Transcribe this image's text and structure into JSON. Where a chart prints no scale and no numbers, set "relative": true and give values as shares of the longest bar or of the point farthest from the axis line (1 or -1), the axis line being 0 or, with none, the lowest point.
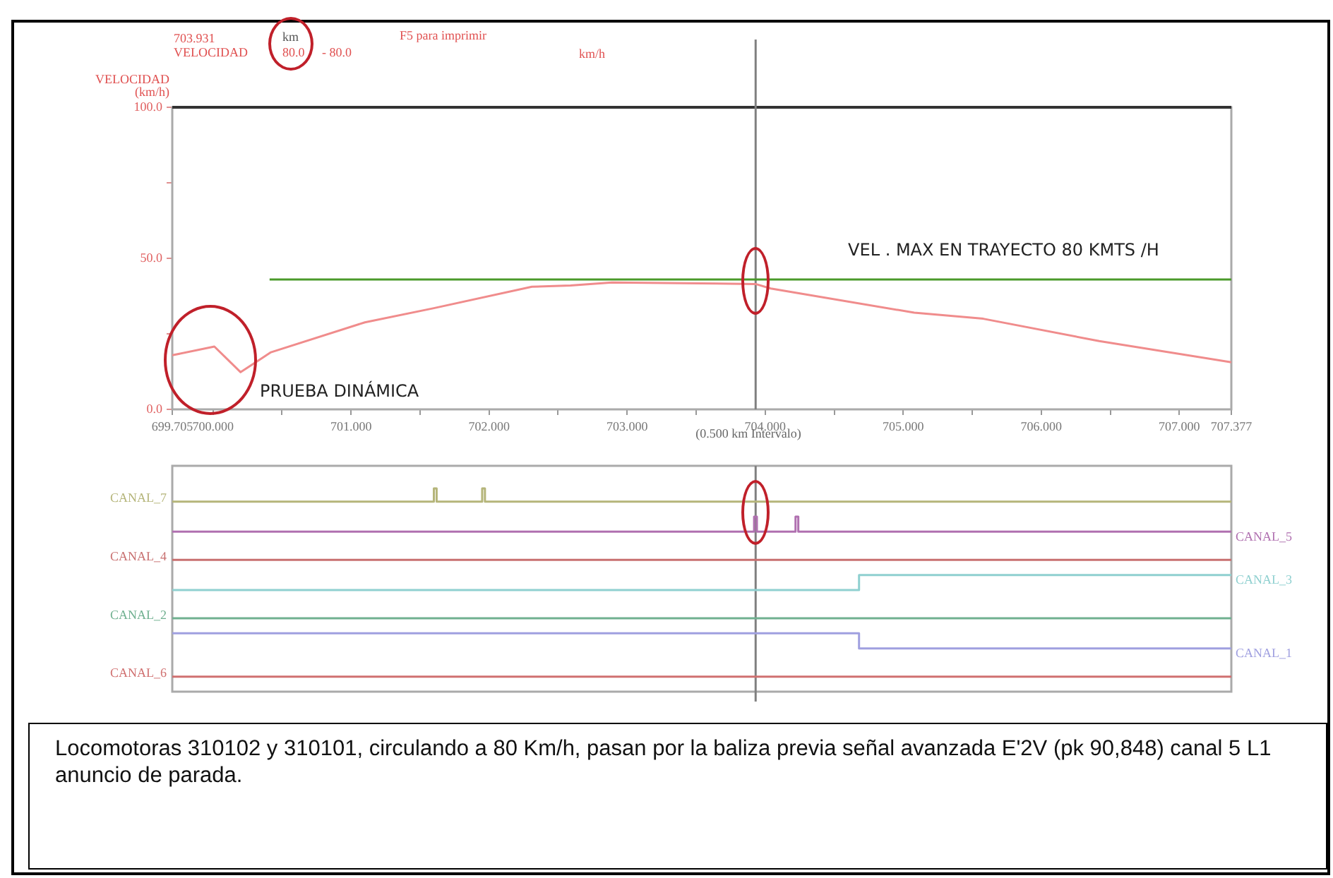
{
  "chart_data": [
    {
      "type": "line",
      "ylabel": "VELOCIDAD (km/h)",
      "xlabel": "(0.500 km Intervalo)",
      "annotations": [
        "703.931",
        "VELOCIDAD",
        "km",
        "80.0",
        "- 80.0",
        "F5 para imprimir",
        "km/h",
        {
          "text": "VEL . MAX EN TRAYECTO 80 KMTS /H",
          "x": 704.6,
          "y": 43
        },
        "PRUEBA DINÁMICA"
      ],
      "series": [
        {
          "color": "#f08c8c",
          "x": [
            699.705,
            700.01,
            700.2,
            700.42,
            701.1,
            701.6,
            702.31,
            702.59,
            702.89,
            703.931,
            704.04,
            705.08,
            705.58,
            706.42,
            707.377
          ],
          "values": [
            17.9,
            20.8,
            12.3,
            18.9,
            28.8,
            33.5,
            40.6,
            41,
            42,
            41.5,
            40,
            32,
            30,
            22.6,
            15.6
          ]
        },
        {
          "color": "#4a9a2a",
          "x": [
            700.41,
            707.377
          ],
          "values": [
            43,
            43
          ]
        }
      ],
      "xlim": [
        699.705,
        707.377
      ],
      "xticks": [
        {
          "value": 699.705,
          "label": "699.705"
        },
        {
          "value": 700,
          "label": "700.000"
        },
        {
          "value": 700.5,
          "label": null
        },
        {
          "value": 701,
          "label": "701.000"
        },
        {
          "value": 701.5,
          "label": null
        },
        {
          "value": 702,
          "label": "702.000"
        },
        {
          "value": 702.5,
          "label": null
        },
        {
          "value": 703,
          "label": "703.000"
        },
        {
          "value": 703.5,
          "label": null
        },
        {
          "value": 704,
          "label": "704.000"
        },
        {
          "value": 704.5,
          "label": null
        },
        {
          "value": 705,
          "label": "705.000"
        },
        {
          "value": 705.5,
          "label": null
        },
        {
          "value": 706,
          "label": "706.000"
        },
        {
          "value": 706.5,
          "label": null
        },
        {
          "value": 707,
          "label": "707.000"
        },
        {
          "value": 707.377,
          "label": "707.377"
        }
      ],
      "ylim": [
        0,
        100
      ],
      "yticks": [
        {
          "value": 0,
          "label": "0.0"
        },
        {
          "value": 25,
          "label": null
        },
        {
          "value": 50,
          "label": "50.0"
        },
        {
          "value": 75,
          "label": null
        },
        {
          "value": 100,
          "label": "100.0"
        }
      ],
      "ref_lines": [
        {
          "axis": "x",
          "value": 703.931,
          "color": "#808080"
        }
      ],
      "grid": false,
      "legend": false,
      "marker": "none"
    },
    {
      "type": "line",
      "relative": true,
      "tick_labels": false,
      "xlim": [
        699.705,
        707.377
      ],
      "annotations": [
        "Locomotoras 310102 y 310101, circulando a 80 Km/h,  pasan por la baliza previa señal avanzada E'2V (pk 90,848) canal 5 L1 anuncio de parada."
      ],
      "series": [
        {
          "name": "CANAL_7",
          "color": "#b5b57a",
          "x": [
            699.705,
            701.6,
            701.6,
            701.62,
            701.62,
            701.95,
            701.95,
            701.97,
            701.97,
            707.377
          ],
          "values": [
            0.93,
            0.93,
            1,
            1,
            0.93,
            0.93,
            1,
            1,
            0.93,
            0.93
          ]
        },
        {
          "name": "CANAL_5",
          "color": "#b070b0",
          "x": [
            699.705,
            703.92,
            703.92,
            703.94,
            703.94,
            704.22,
            704.22,
            704.24,
            704.24,
            707.377
          ],
          "values": [
            0.77,
            0.77,
            0.85,
            0.85,
            0.77,
            0.77,
            0.85,
            0.85,
            0.77,
            0.77
          ]
        },
        {
          "name": "CANAL_4",
          "color": "#c87070",
          "x": [
            699.705,
            707.377
          ],
          "values": [
            0.62,
            0.62
          ]
        },
        {
          "name": "CANAL_3",
          "color": "#8fd0d0",
          "x": [
            699.705,
            704.68,
            704.68,
            707.377
          ],
          "values": [
            0.46,
            0.46,
            0.54,
            0.54
          ]
        },
        {
          "name": "CANAL_2",
          "color": "#70b090",
          "x": [
            699.705,
            707.377
          ],
          "values": [
            0.31,
            0.31
          ]
        },
        {
          "name": "CANAL_1",
          "color": "#a0a0e0",
          "x": [
            699.705,
            704.68,
            704.68,
            707.377
          ],
          "values": [
            0.23,
            0.23,
            0.15,
            0.15
          ]
        },
        {
          "name": "CANAL_6",
          "color": "#d07070",
          "x": [
            699.705,
            707.377
          ],
          "values": [
            0,
            0
          ]
        }
      ],
      "ref_lines": [
        {
          "axis": "x",
          "value": 703.931,
          "color": "#808080"
        }
      ],
      "grid": false,
      "legend": false,
      "marker": "none"
    }
  ]
}
